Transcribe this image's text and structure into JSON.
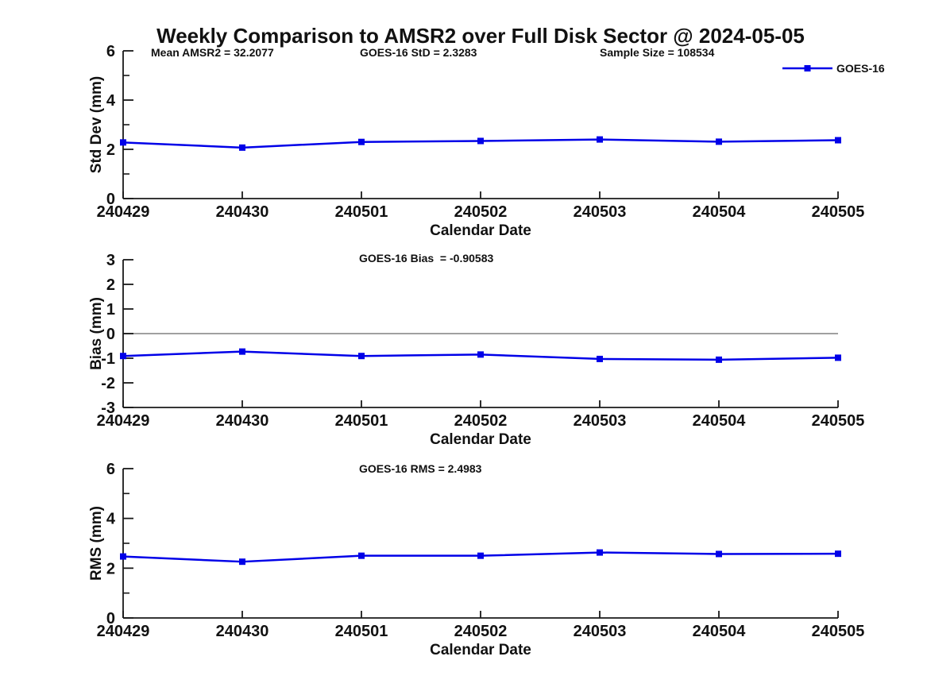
{
  "page": {
    "title": "Weekly Comparison to AMSR2 over Full Disk Sector @ 2024-05-05",
    "background": "#ffffff"
  },
  "legend": {
    "label": "GOES-16"
  },
  "colors": {
    "series": "#0000e8",
    "zero_line": "#808080",
    "axis": "#1a1a1a",
    "text": "#111111"
  },
  "chart_data": [
    {
      "type": "line",
      "name": "std-dev",
      "annotations": [
        "Mean AMSR2 = 32.2077",
        "GOES-16 StD = 2.3283",
        "Sample Size = 108534"
      ],
      "ylabel": "Std Dev (mm)",
      "xlabel": "Calendar Date",
      "categories": [
        "240429",
        "240430",
        "240501",
        "240502",
        "240503",
        "240504",
        "240505"
      ],
      "series": [
        {
          "name": "GOES-16",
          "values": [
            2.28,
            2.07,
            2.3,
            2.34,
            2.4,
            2.31,
            2.37
          ]
        }
      ],
      "ylim": [
        0,
        6
      ],
      "yticks": [
        0,
        2,
        4,
        6
      ],
      "yminor": [
        1,
        3,
        5
      ],
      "zero_line": false,
      "grid": false,
      "legend_position": "top-right",
      "marker": "square"
    },
    {
      "type": "line",
      "name": "bias",
      "annotations": [
        "GOES-16 Bias  = -0.90583"
      ],
      "ylabel": "Bias (mm)",
      "xlabel": "Calendar Date",
      "categories": [
        "240429",
        "240430",
        "240501",
        "240502",
        "240503",
        "240504",
        "240505"
      ],
      "series": [
        {
          "name": "GOES-16",
          "values": [
            -0.91,
            -0.73,
            -0.91,
            -0.85,
            -1.03,
            -1.06,
            -0.98
          ]
        }
      ],
      "ylim": [
        -3,
        3
      ],
      "yticks": [
        -3,
        -2,
        -1,
        0,
        1,
        2,
        3
      ],
      "yminor": [],
      "zero_line": true,
      "grid": false,
      "legend_position": "none",
      "marker": "square"
    },
    {
      "type": "line",
      "name": "rms",
      "annotations": [
        "GOES-16 RMS = 2.4983"
      ],
      "ylabel": "RMS (mm)",
      "xlabel": "Calendar Date",
      "categories": [
        "240429",
        "240430",
        "240501",
        "240502",
        "240503",
        "240504",
        "240505"
      ],
      "series": [
        {
          "name": "GOES-16",
          "values": [
            2.47,
            2.26,
            2.5,
            2.5,
            2.63,
            2.57,
            2.58
          ]
        }
      ],
      "ylim": [
        0,
        6
      ],
      "yticks": [
        0,
        2,
        4,
        6
      ],
      "yminor": [
        1,
        3,
        5
      ],
      "zero_line": false,
      "grid": false,
      "legend_position": "none",
      "marker": "square"
    }
  ]
}
